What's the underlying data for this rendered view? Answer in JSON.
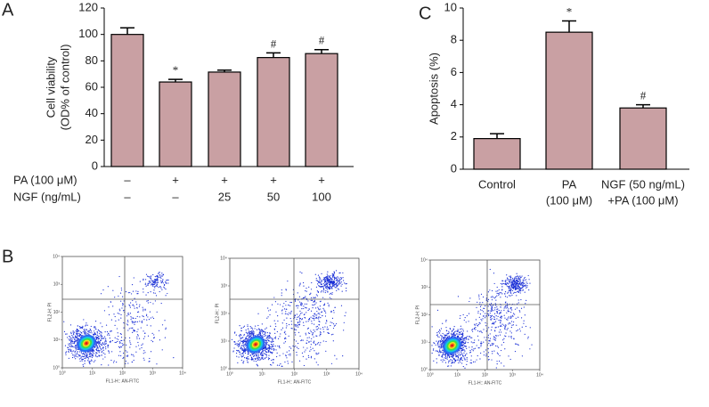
{
  "panel_labels": {
    "a": "A",
    "b": "B",
    "c": "C"
  },
  "chart_data": [
    {
      "type": "bar",
      "ylabel": [
        "Cell viability",
        "(OD% of control)"
      ],
      "values": [
        100,
        64,
        71.5,
        82.5,
        85.5
      ],
      "errors": [
        5,
        2,
        1.5,
        3.5,
        3
      ],
      "markers": [
        null,
        "*",
        null,
        "#",
        "#"
      ],
      "color": "#c9a0a3",
      "ylim": [
        0,
        120
      ],
      "yticks": [
        0,
        20,
        40,
        60,
        80,
        100,
        120
      ],
      "table_rows": [
        {
          "name": "PA (100 μM)",
          "values": [
            "–",
            "+",
            "+",
            "+",
            "+"
          ]
        },
        {
          "name": "NGF (ng/mL)",
          "values": [
            "–",
            "–",
            "25",
            "50",
            "100"
          ]
        }
      ]
    },
    {
      "type": "bar",
      "ylabel": [
        "Apoptosis (%)"
      ],
      "categories": [
        [
          "Control"
        ],
        [
          "PA",
          "(100 μM)"
        ],
        [
          "NGF (50 ng/mL)",
          "+PA (100 μM)"
        ]
      ],
      "values": [
        1.9,
        8.5,
        3.8
      ],
      "errors": [
        0.3,
        0.7,
        0.2
      ],
      "markers": [
        null,
        "*",
        "#"
      ],
      "color": "#c9a0a3",
      "ylim": [
        0,
        10
      ],
      "yticks": [
        0,
        2,
        4,
        6,
        8,
        10
      ]
    }
  ],
  "flow_cytometry": {
    "ticks": [
      {
        "value": 1,
        "label": "10⁰"
      },
      {
        "value": 10,
        "label": "10¹"
      },
      {
        "value": 100,
        "label": "10²"
      },
      {
        "value": 1000,
        "label": "10³"
      },
      {
        "value": 10000,
        "label": "10⁴"
      }
    ],
    "lim": [
      1,
      10000
    ],
    "plots": [
      {
        "xlabel": "FL1-H:: AN-FITC",
        "ylabel": "FL2-H: PI"
      },
      {
        "xlabel": "FL1-H:: AN-FITC",
        "ylabel": "FL2-H:: PI"
      },
      {
        "xlabel": "FL1-H:: AN-FITC",
        "ylabel": "FL2-H: PI"
      }
    ]
  }
}
